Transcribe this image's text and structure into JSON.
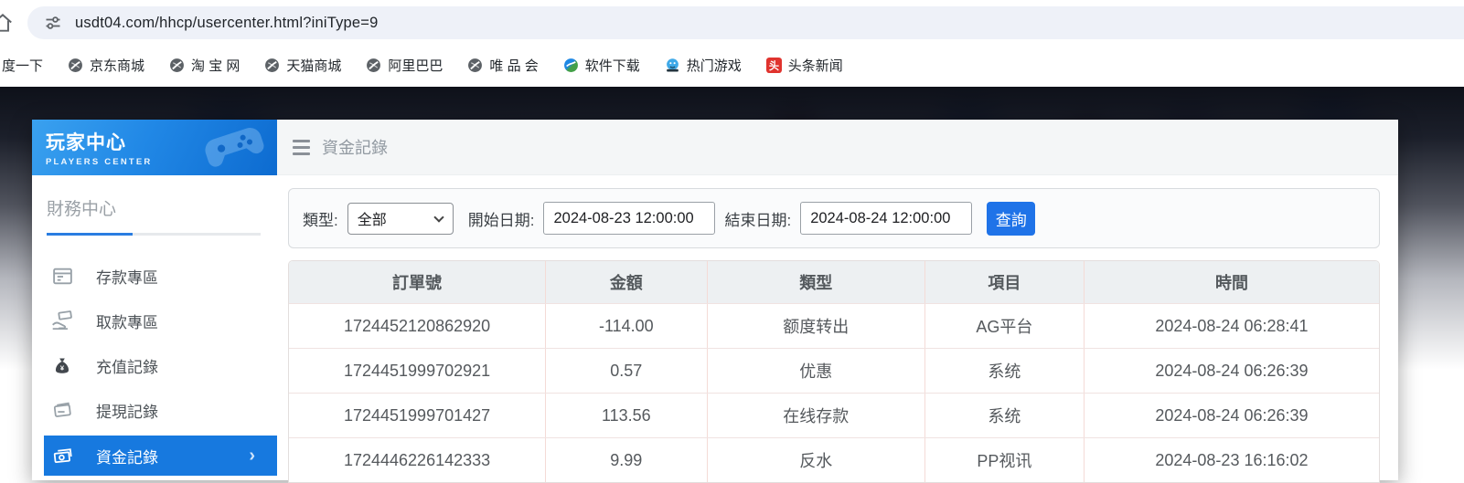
{
  "browser": {
    "url": "usdt04.com/hhcp/usercenter.html?iniType=9",
    "bookmarks": [
      {
        "label": "度一下",
        "icon": "none"
      },
      {
        "label": "京东商城",
        "icon": "globe"
      },
      {
        "label": "淘 宝 网",
        "icon": "globe"
      },
      {
        "label": "天猫商城",
        "icon": "globe"
      },
      {
        "label": "阿里巴巴",
        "icon": "globe"
      },
      {
        "label": "唯 品 会",
        "icon": "globe"
      },
      {
        "label": "软件下载",
        "icon": "download"
      },
      {
        "label": "热门游戏",
        "icon": "game"
      },
      {
        "label": "头条新闻",
        "icon": "news"
      }
    ]
  },
  "sidebar": {
    "title": "玩家中心",
    "subtitle": "PLAYERS CENTER",
    "section_title": "財務中心",
    "items": [
      {
        "label": "存款專區",
        "icon": "deposit",
        "active": false
      },
      {
        "label": "取款專區",
        "icon": "withdraw",
        "active": false
      },
      {
        "label": "充值記錄",
        "icon": "recharge",
        "active": false
      },
      {
        "label": "提現記錄",
        "icon": "cashout",
        "active": false
      },
      {
        "label": "資金記錄",
        "icon": "funds",
        "active": true,
        "chevron": "›"
      }
    ]
  },
  "main": {
    "title": "資金記錄",
    "filter": {
      "type_label": "類型:",
      "type_value": "全部",
      "start_label": "開始日期:",
      "start_value": "2024-08-23 12:00:00",
      "end_label": "結束日期:",
      "end_value": "2024-08-24 12:00:00",
      "search_button": "查詢"
    },
    "table": {
      "headers": [
        "訂單號",
        "金額",
        "類型",
        "項目",
        "時間"
      ],
      "rows": [
        {
          "order": "1724452120862920",
          "amount": "-114.00",
          "type": "额度转出",
          "item": "AG平台",
          "time": "2024-08-24 06:28:41"
        },
        {
          "order": "1724451999702921",
          "amount": "0.57",
          "type": "优惠",
          "item": "系统",
          "time": "2024-08-24 06:26:39"
        },
        {
          "order": "1724451999701427",
          "amount": "113.56",
          "type": "在线存款",
          "item": "系统",
          "time": "2024-08-24 06:26:39"
        },
        {
          "order": "1724446226142333",
          "amount": "9.99",
          "type": "反水",
          "item": "PP视讯",
          "time": "2024-08-23 16:16:02"
        }
      ]
    }
  },
  "colors": {
    "accent_blue": "#1a73e8",
    "active_item_blue": "#1779df",
    "sidebar_header_gradient_start": "#3aa1ef",
    "sidebar_header_gradient_end": "#0d6bd0",
    "search_button_blue": "#1f73e8",
    "table_header_bg": "#edf0f2",
    "table_border_pink": "#f4dbd7",
    "backdrop_dark": "#0a0e1a"
  }
}
